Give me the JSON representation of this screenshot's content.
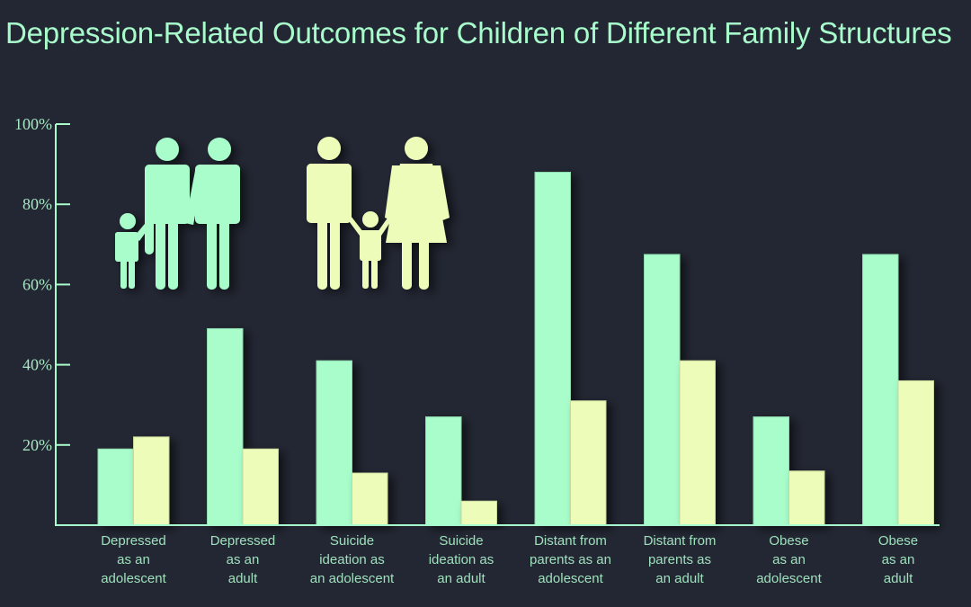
{
  "chart_data": {
    "type": "bar",
    "title": "Depression-Related Outcomes for Children of Different Family Structures",
    "xlabel": "",
    "ylabel": "",
    "ylim": [
      0,
      100
    ],
    "yticks": [
      20,
      40,
      60,
      80,
      100
    ],
    "ytick_labels": [
      "20%",
      "40%",
      "60%",
      "80%",
      "100%"
    ],
    "grid": false,
    "categories": [
      [
        "Depressed",
        "as an",
        "adolescent"
      ],
      [
        "Depressed",
        "as an",
        "adult"
      ],
      [
        "Suicide",
        "ideation as",
        "an adolescent"
      ],
      [
        "Suicide",
        "ideation as",
        "an adult"
      ],
      [
        "Distant from",
        "parents as an",
        "adolescent"
      ],
      [
        "Distant from",
        "parents as",
        "an adult"
      ],
      [
        "Obese",
        "as an",
        "adolescent"
      ],
      [
        "Obese",
        "as an",
        "adult"
      ]
    ],
    "series": [
      {
        "name": "Same-sex parents (two men with child icon)",
        "color": "#a8fdcb",
        "values": [
          19,
          49,
          41,
          27,
          88,
          67.5,
          27,
          67.5
        ]
      },
      {
        "name": "Opposite-sex parents (man and woman with child icon)",
        "color": "#edfdb9",
        "values": [
          22,
          19,
          13,
          6,
          31,
          41,
          13.5,
          36
        ]
      }
    ],
    "legend": "icons at top-left",
    "legend_icons": [
      "two-fathers-family-icon",
      "mother-father-family-icon"
    ]
  },
  "colors": {
    "background": "#232733",
    "axis": "#a8fccb",
    "text": "#a8fccb"
  }
}
